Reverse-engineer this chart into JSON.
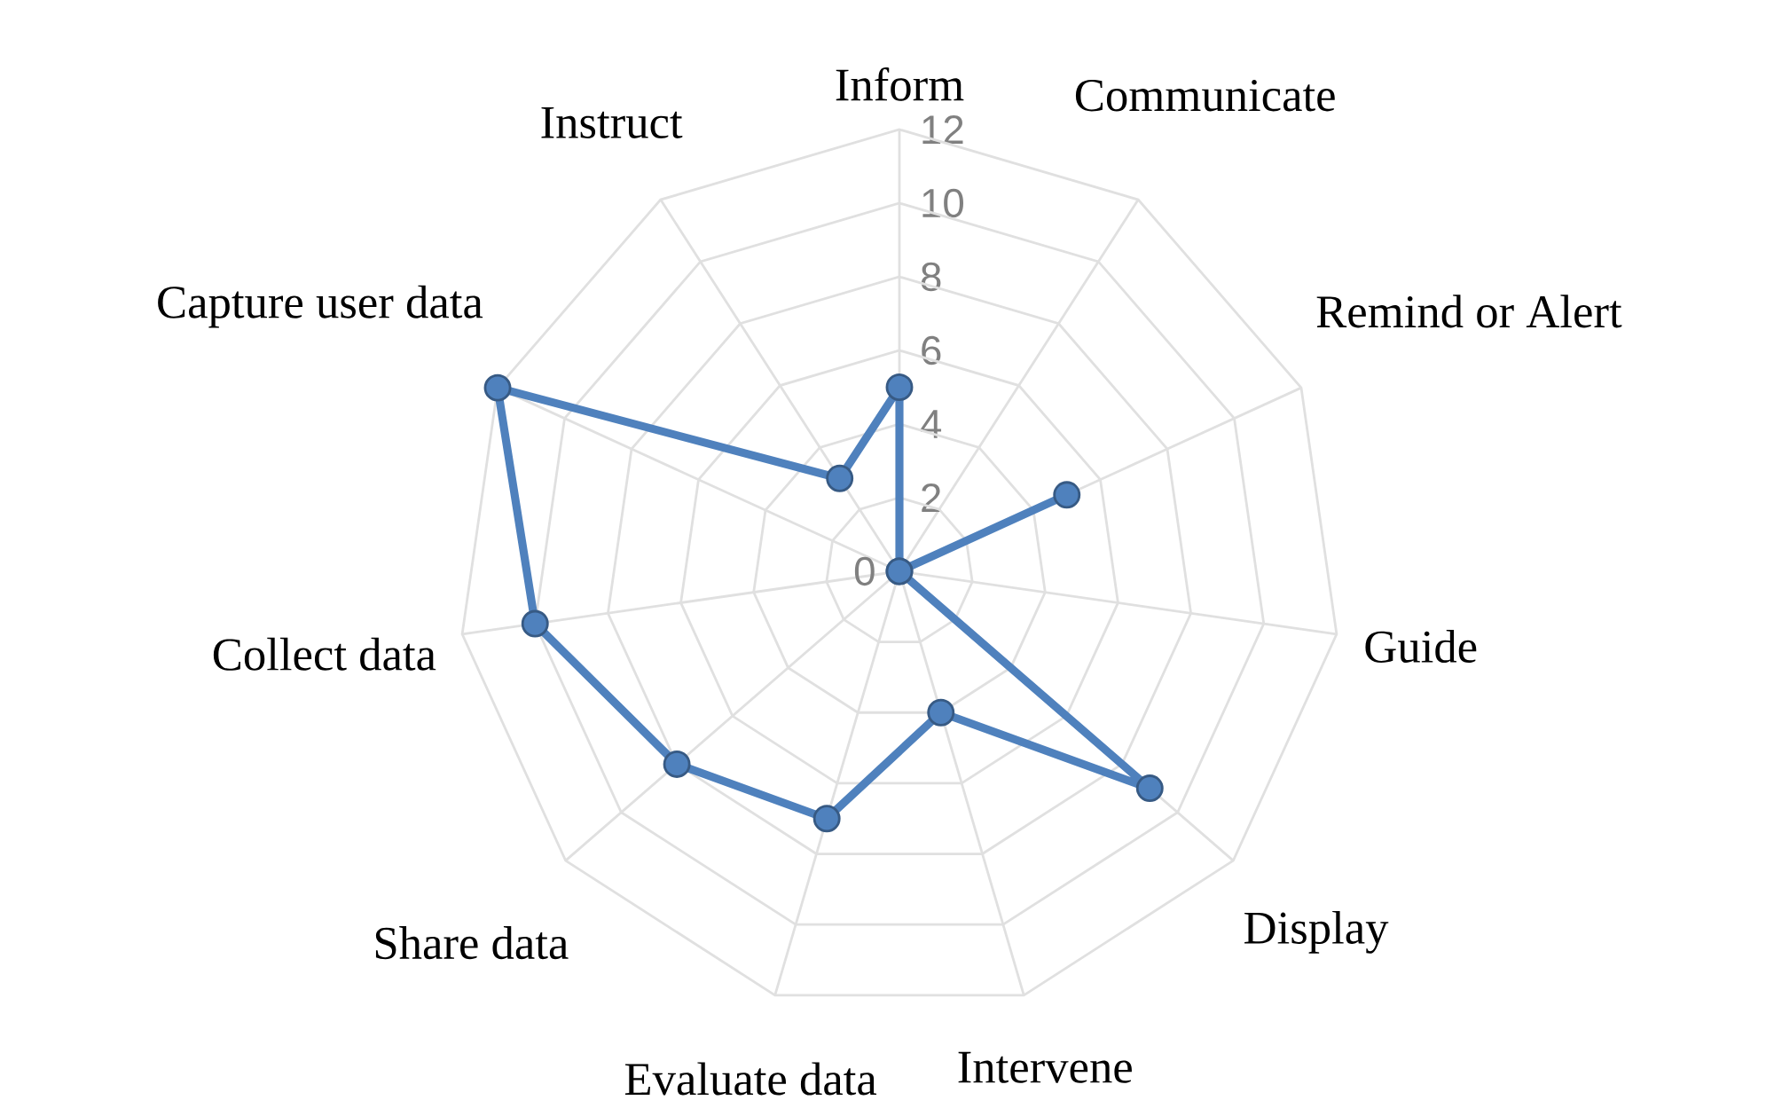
{
  "chart_data": {
    "type": "radar",
    "categories": [
      "Inform",
      "Communicate",
      "Remind or Alert",
      "Guide",
      "Display",
      "Intervene",
      "Evaluate data",
      "Share data",
      "Collect data",
      "Capture user data",
      "Instruct"
    ],
    "series": [
      {
        "color": "#4f81bd",
        "values": [
          5,
          0,
          5,
          0,
          9,
          4,
          7,
          8,
          10,
          12,
          3
        ]
      }
    ],
    "ylim": [
      0,
      12
    ],
    "yticks": [
      0,
      2,
      4,
      6,
      8,
      10,
      12
    ],
    "grid": true,
    "marker": "circle",
    "legend": false
  }
}
